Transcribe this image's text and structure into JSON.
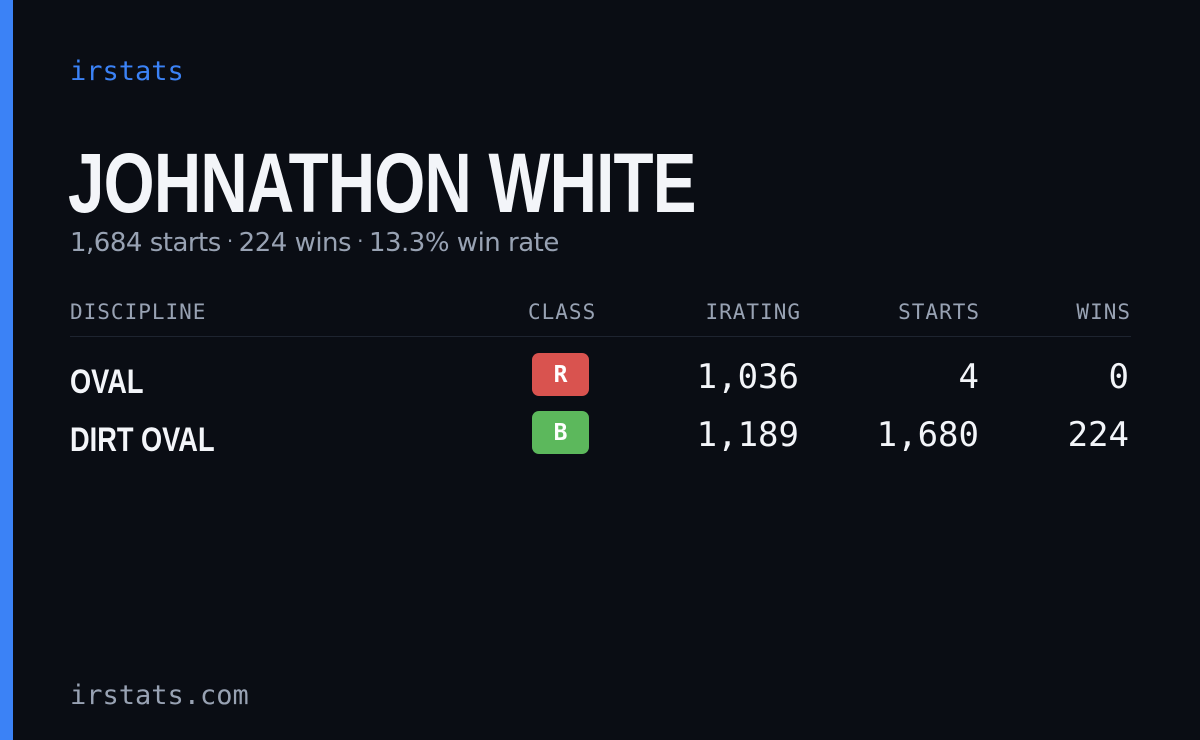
{
  "brand": "irstats",
  "driver": {
    "name": "JOHNATHON WHITE",
    "starts_text": "1,684 starts",
    "wins_text": "224 wins",
    "win_rate_text": "13.3% win rate",
    "separator": "·"
  },
  "table": {
    "headers": {
      "discipline": "DISCIPLINE",
      "class": "CLASS",
      "irating": "IRATING",
      "starts": "STARTS",
      "wins": "WINS"
    },
    "rows": [
      {
        "discipline": "OVAL",
        "class": "R",
        "class_color": "#d9534f",
        "irating": "1,036",
        "starts": "4",
        "wins": "0"
      },
      {
        "discipline": "DIRT OVAL",
        "class": "B",
        "class_color": "#5cb85c",
        "irating": "1,189",
        "starts": "1,680",
        "wins": "224"
      }
    ]
  },
  "footer": "irstats.com",
  "colors": {
    "background": "#0a0d14",
    "accent": "#3b82f6",
    "text": "#f3f5f9",
    "muted": "#98a2b3"
  }
}
